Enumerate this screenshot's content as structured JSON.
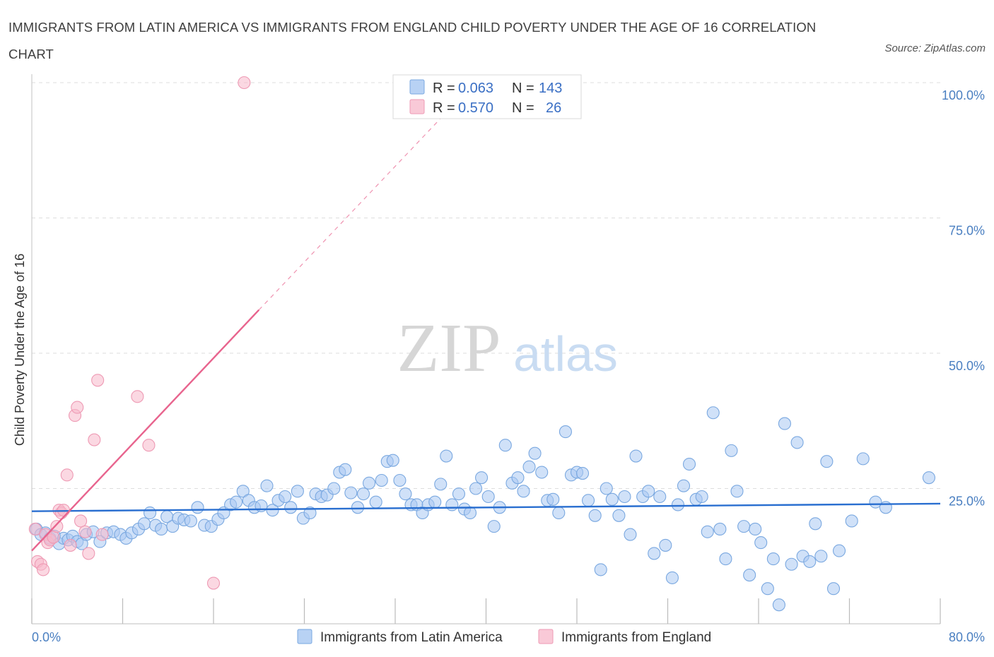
{
  "header": {
    "title": "IMMIGRANTS FROM LATIN AMERICA VS IMMIGRANTS FROM ENGLAND CHILD POVERTY UNDER THE AGE OF 16 CORRELATION CHART",
    "source": "Source: ZipAtlas.com"
  },
  "watermark": {
    "zip": "ZIP",
    "atlas": "atlas"
  },
  "colors": {
    "blue_fill": "#a9c8f2",
    "blue_stroke": "#7aa8e0",
    "blue_line": "#2a6fd0",
    "pink_fill": "#f7b8cb",
    "pink_stroke": "#ee9ab4",
    "pink_line": "#e8648e",
    "grid": "#dddddd",
    "tick_text": "#4a7fc1"
  },
  "legend": {
    "rows": [
      {
        "r_label": "R =",
        "r_value": "0.063",
        "n_label": "N =",
        "n_value": "143"
      },
      {
        "r_label": "R =",
        "r_value": "0.570",
        "n_label": "N =",
        "n_value": "26"
      }
    ]
  },
  "chart_data": {
    "type": "scatter",
    "ylabel": "Child Poverty Under the Age of 16",
    "xlim": [
      0,
      80
    ],
    "ylim": [
      0,
      100
    ],
    "x_tick_labels": [
      "0.0%",
      "80.0%"
    ],
    "y_ticks": [
      25,
      50,
      75,
      100
    ],
    "y_tick_labels": [
      "25.0%",
      "50.0%",
      "75.0%",
      "100.0%"
    ],
    "grid": true,
    "legend_position": "top-center",
    "series": [
      {
        "name": "Immigrants from Latin America",
        "color": "#a9c8f2",
        "R": 0.063,
        "N": 143,
        "trend": {
          "x": [
            0,
            80
          ],
          "y": [
            20.8,
            22.2
          ]
        },
        "points": [
          [
            0.4,
            17.5
          ],
          [
            0.8,
            16.5
          ],
          [
            1.2,
            16.8
          ],
          [
            1.6,
            15.8
          ],
          [
            2.0,
            16.2
          ],
          [
            2.4,
            14.8
          ],
          [
            2.8,
            15.8
          ],
          [
            3.2,
            15.5
          ],
          [
            3.6,
            16.2
          ],
          [
            4.0,
            15.2
          ],
          [
            4.4,
            14.8
          ],
          [
            4.8,
            16.5
          ],
          [
            5.4,
            17.0
          ],
          [
            6.0,
            15.2
          ],
          [
            6.6,
            16.8
          ],
          [
            7.2,
            17.0
          ],
          [
            7.8,
            16.5
          ],
          [
            8.3,
            15.8
          ],
          [
            8.8,
            16.8
          ],
          [
            9.4,
            17.5
          ],
          [
            9.9,
            18.5
          ],
          [
            10.4,
            20.5
          ],
          [
            10.9,
            18.2
          ],
          [
            11.4,
            17.5
          ],
          [
            11.9,
            19.8
          ],
          [
            12.4,
            18.0
          ],
          [
            12.9,
            19.5
          ],
          [
            13.4,
            19.2
          ],
          [
            14.0,
            19.0
          ],
          [
            14.6,
            21.5
          ],
          [
            15.2,
            18.2
          ],
          [
            15.8,
            18.0
          ],
          [
            16.4,
            19.3
          ],
          [
            16.9,
            20.5
          ],
          [
            17.5,
            22.0
          ],
          [
            18.0,
            22.5
          ],
          [
            18.6,
            24.5
          ],
          [
            19.1,
            22.8
          ],
          [
            19.6,
            21.5
          ],
          [
            20.2,
            21.8
          ],
          [
            20.7,
            25.5
          ],
          [
            21.2,
            21.0
          ],
          [
            21.7,
            22.8
          ],
          [
            22.3,
            23.5
          ],
          [
            22.8,
            21.5
          ],
          [
            23.4,
            24.5
          ],
          [
            23.9,
            19.5
          ],
          [
            24.5,
            20.5
          ],
          [
            25.0,
            24.0
          ],
          [
            25.5,
            23.5
          ],
          [
            26.0,
            23.8
          ],
          [
            26.6,
            25.0
          ],
          [
            27.1,
            28.0
          ],
          [
            27.6,
            28.5
          ],
          [
            28.1,
            24.2
          ],
          [
            28.7,
            21.5
          ],
          [
            29.2,
            24.0
          ],
          [
            29.7,
            26.0
          ],
          [
            30.3,
            22.5
          ],
          [
            30.8,
            26.5
          ],
          [
            31.3,
            30.0
          ],
          [
            31.8,
            30.2
          ],
          [
            32.4,
            26.5
          ],
          [
            32.9,
            24.0
          ],
          [
            33.4,
            22.0
          ],
          [
            33.9,
            22.0
          ],
          [
            34.4,
            20.5
          ],
          [
            34.9,
            22.0
          ],
          [
            35.5,
            22.5
          ],
          [
            36.0,
            25.8
          ],
          [
            36.5,
            31.0
          ],
          [
            37.0,
            22.0
          ],
          [
            37.6,
            24.0
          ],
          [
            38.1,
            21.2
          ],
          [
            38.6,
            20.5
          ],
          [
            39.1,
            25.0
          ],
          [
            39.6,
            27.0
          ],
          [
            40.2,
            23.5
          ],
          [
            40.7,
            18.0
          ],
          [
            41.2,
            21.5
          ],
          [
            41.7,
            33.0
          ],
          [
            42.3,
            26.0
          ],
          [
            42.8,
            27.0
          ],
          [
            43.3,
            24.5
          ],
          [
            43.8,
            29.0
          ],
          [
            44.3,
            31.5
          ],
          [
            44.9,
            28.0
          ],
          [
            45.4,
            22.8
          ],
          [
            45.9,
            23.0
          ],
          [
            46.4,
            20.5
          ],
          [
            47.0,
            35.5
          ],
          [
            47.5,
            27.5
          ],
          [
            48.0,
            28.0
          ],
          [
            48.5,
            27.8
          ],
          [
            49.0,
            22.8
          ],
          [
            49.6,
            20.0
          ],
          [
            50.1,
            10.0
          ],
          [
            50.6,
            25.0
          ],
          [
            51.1,
            23.0
          ],
          [
            51.7,
            20.0
          ],
          [
            52.2,
            23.5
          ],
          [
            52.7,
            16.5
          ],
          [
            53.2,
            31.0
          ],
          [
            53.8,
            23.5
          ],
          [
            54.3,
            24.5
          ],
          [
            54.8,
            13.0
          ],
          [
            55.3,
            23.5
          ],
          [
            55.8,
            14.5
          ],
          [
            56.4,
            8.5
          ],
          [
            56.9,
            22.0
          ],
          [
            57.4,
            25.5
          ],
          [
            57.9,
            29.5
          ],
          [
            58.5,
            23.0
          ],
          [
            59.0,
            23.5
          ],
          [
            59.5,
            17.0
          ],
          [
            60.0,
            39.0
          ],
          [
            60.6,
            17.5
          ],
          [
            61.1,
            12.0
          ],
          [
            61.6,
            32.0
          ],
          [
            62.1,
            24.5
          ],
          [
            62.7,
            18.0
          ],
          [
            63.2,
            9.0
          ],
          [
            63.7,
            17.5
          ],
          [
            64.2,
            15.0
          ],
          [
            64.8,
            6.5
          ],
          [
            65.3,
            12.0
          ],
          [
            65.8,
            3.5
          ],
          [
            66.3,
            37.0
          ],
          [
            66.9,
            11.0
          ],
          [
            67.4,
            33.5
          ],
          [
            67.9,
            12.5
          ],
          [
            68.5,
            11.5
          ],
          [
            69.0,
            18.5
          ],
          [
            69.5,
            12.5
          ],
          [
            70.0,
            30.0
          ],
          [
            70.6,
            6.5
          ],
          [
            71.1,
            13.5
          ],
          [
            72.2,
            19.0
          ],
          [
            73.2,
            30.5
          ],
          [
            74.3,
            22.5
          ],
          [
            75.2,
            21.5
          ],
          [
            79.0,
            27.0
          ]
        ]
      },
      {
        "name": "Immigrants from England",
        "color": "#f7b8cb",
        "R": 0.57,
        "N": 26,
        "trend": {
          "x": [
            0,
            20
          ],
          "y": [
            13.5,
            58.0
          ],
          "extended": {
            "x": [
              20,
              36.5
            ],
            "y": [
              58.0,
              94.5
            ]
          }
        },
        "points": [
          [
            0.3,
            17.5
          ],
          [
            0.5,
            11.5
          ],
          [
            0.8,
            11.0
          ],
          [
            1.0,
            10.0
          ],
          [
            1.2,
            16.5
          ],
          [
            1.4,
            15.0
          ],
          [
            1.6,
            15.5
          ],
          [
            1.9,
            16.0
          ],
          [
            2.2,
            18.0
          ],
          [
            2.4,
            21.0
          ],
          [
            2.6,
            20.5
          ],
          [
            2.8,
            21.0
          ],
          [
            3.1,
            27.5
          ],
          [
            3.4,
            14.5
          ],
          [
            3.8,
            38.5
          ],
          [
            4.0,
            40.0
          ],
          [
            4.3,
            19.0
          ],
          [
            4.7,
            17.0
          ],
          [
            5.0,
            13.0
          ],
          [
            5.5,
            34.0
          ],
          [
            5.8,
            45.0
          ],
          [
            6.2,
            16.5
          ],
          [
            9.3,
            42.0
          ],
          [
            10.3,
            33.0
          ],
          [
            16.0,
            7.5
          ],
          [
            18.7,
            100.0
          ]
        ]
      }
    ]
  },
  "bottom_legend": {
    "items": [
      {
        "label": "Immigrants from Latin America"
      },
      {
        "label": "Immigrants from England"
      }
    ]
  }
}
